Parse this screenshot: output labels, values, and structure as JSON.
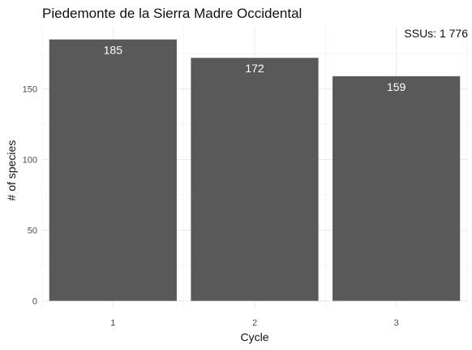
{
  "chart_data": {
    "type": "bar",
    "title": "Piedemonte de la Sierra Madre Occidental",
    "annotation": "SSUs: 1 776",
    "xlabel": "Cycle",
    "ylabel": "# of species",
    "categories": [
      "1",
      "2",
      "3"
    ],
    "values": [
      185,
      172,
      159
    ],
    "value_labels": [
      "185",
      "172",
      "159"
    ],
    "yticks": [
      "0",
      "50",
      "100",
      "150"
    ],
    "ylim": [
      0,
      190
    ],
    "grid": true,
    "legend": "none",
    "colors": {
      "bar": "#595959",
      "bar_label": "#ffffff",
      "grid_major": "#ebebeb",
      "grid_minor": "#f3f3f3",
      "background": "#ffffff"
    }
  }
}
